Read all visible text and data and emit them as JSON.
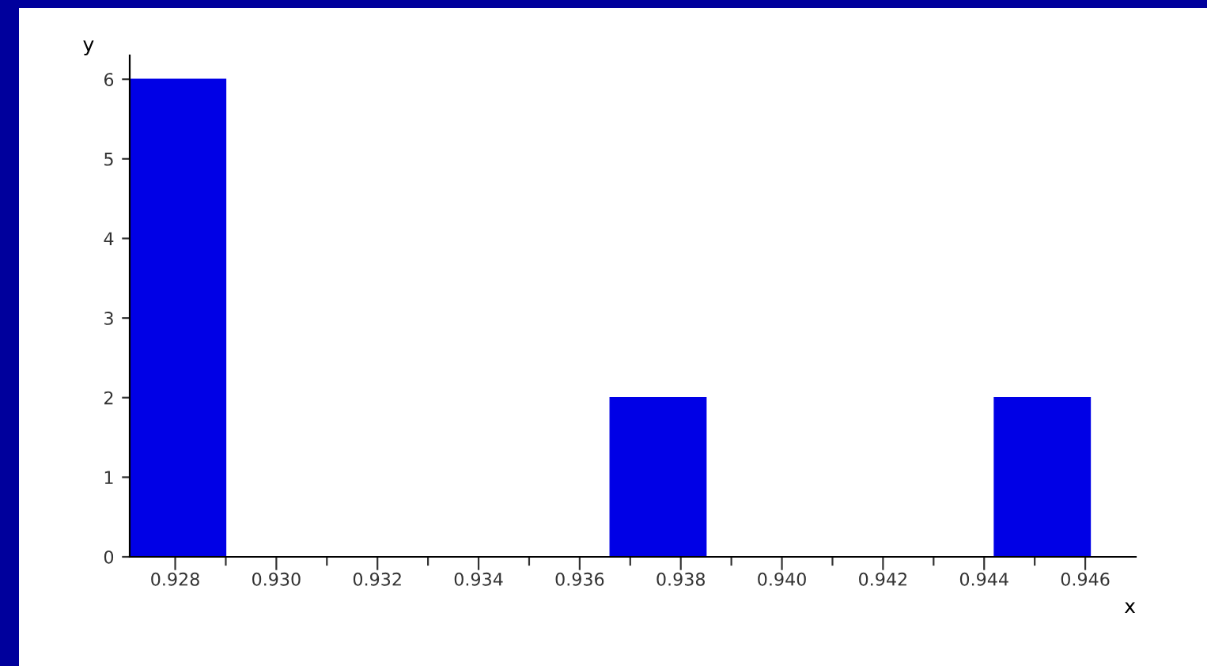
{
  "chart_data": {
    "type": "histogram",
    "xlabel": "x",
    "ylabel": "y",
    "bins": [
      0.9271,
      0.929,
      0.9309,
      0.9328,
      0.9347,
      0.9366,
      0.9385,
      0.9404,
      0.9423,
      0.9442,
      0.9461
    ],
    "values": [
      6,
      0,
      0,
      0,
      0,
      2,
      0,
      0,
      0,
      2
    ],
    "color": "#0000e6",
    "xlim": [
      0.9271,
      0.947
    ],
    "ylim": [
      0,
      6.3
    ],
    "xticks": [
      {
        "value": 0.928,
        "label": "0.928"
      },
      {
        "value": 0.929,
        "label": null
      },
      {
        "value": 0.93,
        "label": "0.930"
      },
      {
        "value": 0.931,
        "label": null
      },
      {
        "value": 0.932,
        "label": "0.932"
      },
      {
        "value": 0.933,
        "label": null
      },
      {
        "value": 0.934,
        "label": "0.934"
      },
      {
        "value": 0.935,
        "label": null
      },
      {
        "value": 0.936,
        "label": "0.936"
      },
      {
        "value": 0.937,
        "label": null
      },
      {
        "value": 0.938,
        "label": "0.938"
      },
      {
        "value": 0.939,
        "label": null
      },
      {
        "value": 0.94,
        "label": "0.940"
      },
      {
        "value": 0.941,
        "label": null
      },
      {
        "value": 0.942,
        "label": "0.942"
      },
      {
        "value": 0.943,
        "label": null
      },
      {
        "value": 0.944,
        "label": "0.944"
      },
      {
        "value": 0.945,
        "label": null
      },
      {
        "value": 0.946,
        "label": "0.946"
      }
    ],
    "yticks": [
      0,
      1,
      2,
      3,
      4,
      5,
      6
    ],
    "grid": false
  }
}
